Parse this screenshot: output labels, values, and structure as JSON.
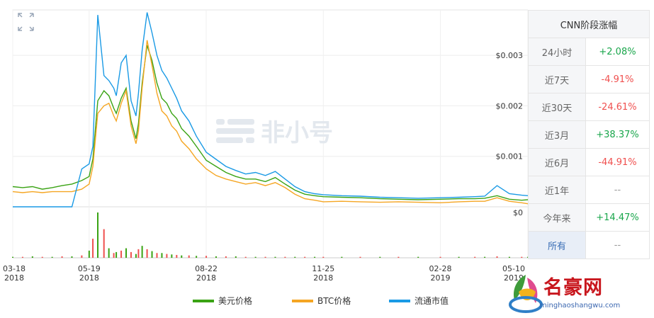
{
  "chart_data": {
    "type": "line",
    "x": [
      "2018-03-18",
      "2018-03-26",
      "2018-04-03",
      "2018-04-11",
      "2018-04-19",
      "2018-04-27",
      "2018-05-05",
      "2018-05-13",
      "2018-05-19",
      "2018-05-22",
      "2018-05-26",
      "2018-05-31",
      "2018-06-04",
      "2018-06-08",
      "2018-06-10",
      "2018-06-14",
      "2018-06-18",
      "2018-06-22",
      "2018-06-26",
      "2018-06-28",
      "2018-07-01",
      "2018-07-05",
      "2018-07-09",
      "2018-07-13",
      "2018-07-17",
      "2018-07-21",
      "2018-07-25",
      "2018-07-29",
      "2018-08-02",
      "2018-08-08",
      "2018-08-14",
      "2018-08-22",
      "2018-08-30",
      "2018-09-07",
      "2018-09-15",
      "2018-09-23",
      "2018-10-01",
      "2018-10-09",
      "2018-10-17",
      "2018-10-25",
      "2018-11-02",
      "2018-11-10",
      "2018-11-18",
      "2018-11-25",
      "2018-12-10",
      "2018-12-25",
      "2019-01-10",
      "2019-01-25",
      "2019-02-10",
      "2019-02-28",
      "2019-03-15",
      "2019-03-28",
      "2019-04-05",
      "2019-04-15",
      "2019-04-25",
      "2019-05-05",
      "2019-05-10"
    ],
    "series": [
      {
        "name": "美元价格",
        "color": "#3aa314",
        "values": [
          0.0004,
          0.00038,
          0.0004,
          0.00035,
          0.00038,
          0.00042,
          0.00045,
          0.00052,
          0.0006,
          0.00095,
          0.0021,
          0.0023,
          0.0022,
          0.00195,
          0.00185,
          0.00215,
          0.00235,
          0.0017,
          0.00135,
          0.00165,
          0.00245,
          0.0032,
          0.0029,
          0.00245,
          0.00215,
          0.00205,
          0.00185,
          0.00175,
          0.00155,
          0.0014,
          0.0012,
          0.00092,
          0.0008,
          0.00068,
          0.0006,
          0.00055,
          0.00055,
          0.0005,
          0.00058,
          0.00045,
          0.00033,
          0.00025,
          0.00022,
          0.0002,
          0.00019,
          0.00018,
          0.00016,
          0.00015,
          0.00014,
          0.00015,
          0.00016,
          0.00016,
          0.00017,
          0.00022,
          0.00015,
          0.00013,
          0.00014
        ]
      },
      {
        "name": "BTC价格",
        "color": "#f5a623",
        "values": [
          0.0003,
          0.00028,
          0.0003,
          0.00028,
          0.0003,
          0.0003,
          0.0003,
          0.00035,
          0.00045,
          0.0008,
          0.00185,
          0.002,
          0.00205,
          0.0018,
          0.0017,
          0.00205,
          0.0023,
          0.0016,
          0.00125,
          0.0015,
          0.00235,
          0.0033,
          0.0028,
          0.00225,
          0.0019,
          0.0018,
          0.0016,
          0.0015,
          0.0013,
          0.00115,
          0.00095,
          0.00075,
          0.00062,
          0.00055,
          0.0005,
          0.00045,
          0.00048,
          0.00042,
          0.00048,
          0.00038,
          0.00025,
          0.00016,
          0.00013,
          0.0001,
          0.00011,
          0.0001,
          9e-05,
          0.0001,
          9e-05,
          8e-05,
          0.0001,
          0.00011,
          0.00011,
          0.00018,
          0.00011,
          8e-05,
          6e-05
        ]
      },
      {
        "name": "流通市值",
        "color": "#1a9ae5",
        "values": [
          0.0,
          0.0,
          0.0,
          0.0,
          0.0,
          0.0,
          0.0,
          0.00075,
          0.00085,
          0.0012,
          0.0038,
          0.0026,
          0.0025,
          0.00235,
          0.0022,
          0.00285,
          0.003,
          0.0021,
          0.0018,
          0.00225,
          0.0031,
          0.00385,
          0.00345,
          0.003,
          0.0027,
          0.00255,
          0.00235,
          0.00215,
          0.0019,
          0.0017,
          0.0014,
          0.00108,
          0.00094,
          0.0008,
          0.00072,
          0.00065,
          0.00068,
          0.00062,
          0.0007,
          0.00055,
          0.0004,
          0.0003,
          0.00026,
          0.00024,
          0.00022,
          0.00021,
          0.00019,
          0.00018,
          0.00017,
          0.00018,
          0.00019,
          0.0002,
          0.00021,
          0.00042,
          0.00026,
          0.00023,
          0.00022
        ]
      }
    ],
    "volume": [
      0.02,
      0.02,
      0.03,
      0.02,
      0.02,
      0.03,
      0.03,
      0.05,
      0.15,
      0.4,
      0.95,
      0.6,
      0.2,
      0.1,
      0.12,
      0.15,
      0.2,
      0.12,
      0.08,
      0.18,
      0.25,
      0.18,
      0.14,
      0.1,
      0.1,
      0.08,
      0.07,
      0.06,
      0.05,
      0.05,
      0.04,
      0.04,
      0.03,
      0.03,
      0.03,
      0.02,
      0.02,
      0.02,
      0.02,
      0.02,
      0.02,
      0.02,
      0.02,
      0.02,
      0.02,
      0.02,
      0.02,
      0.02,
      0.02,
      0.02,
      0.02,
      0.02,
      0.02,
      0.03,
      0.02,
      0.02,
      0.02
    ],
    "y_ticks": [
      "$0",
      "$0.001",
      "$0.002",
      "$0.003"
    ],
    "y_tick_values": [
      0,
      0.001,
      0.002,
      0.003
    ],
    "x_ticks": [
      {
        "date": "2018-03-18",
        "label1": "03-18",
        "label2": "2018"
      },
      {
        "date": "2018-05-19",
        "label1": "05-19",
        "label2": "2018"
      },
      {
        "date": "2018-08-22",
        "label1": "08-22",
        "label2": "2018"
      },
      {
        "date": "2018-11-25",
        "label1": "11-25",
        "label2": "2018"
      },
      {
        "date": "2019-02-28",
        "label1": "02-28",
        "label2": "2019"
      },
      {
        "date": "2019-05-10",
        "label1": "05-10",
        "label2": "2019"
      }
    ],
    "ylim": [
      0,
      0.0039
    ],
    "xlim": [
      "2018-03-18",
      "2019-05-10"
    ],
    "grid": true,
    "legend_position": "bottom-center",
    "title": "",
    "xlabel": "",
    "ylabel": ""
  },
  "watermark": "非小号",
  "icons": {
    "expand": "expand-icon",
    "logo": "logo-icon"
  },
  "stats": {
    "header": "CNN阶段涨幅",
    "rows": [
      {
        "label": "24小时",
        "value": "+2.08%",
        "trend": "up"
      },
      {
        "label": "近7天",
        "value": "-4.91%",
        "trend": "down"
      },
      {
        "label": "近30天",
        "value": "-24.61%",
        "trend": "down"
      },
      {
        "label": "近3月",
        "value": "+38.37%",
        "trend": "up"
      },
      {
        "label": "近6月",
        "value": "-44.91%",
        "trend": "down"
      },
      {
        "label": "近1年",
        "value": "--",
        "trend": "flat"
      },
      {
        "label": "今年来",
        "value": "+14.47%",
        "trend": "up"
      },
      {
        "label": "所有",
        "value": "--",
        "trend": "flat",
        "active": true
      }
    ]
  },
  "brand": {
    "name": "名豪网",
    "url": "minghaoshangwu.com"
  }
}
